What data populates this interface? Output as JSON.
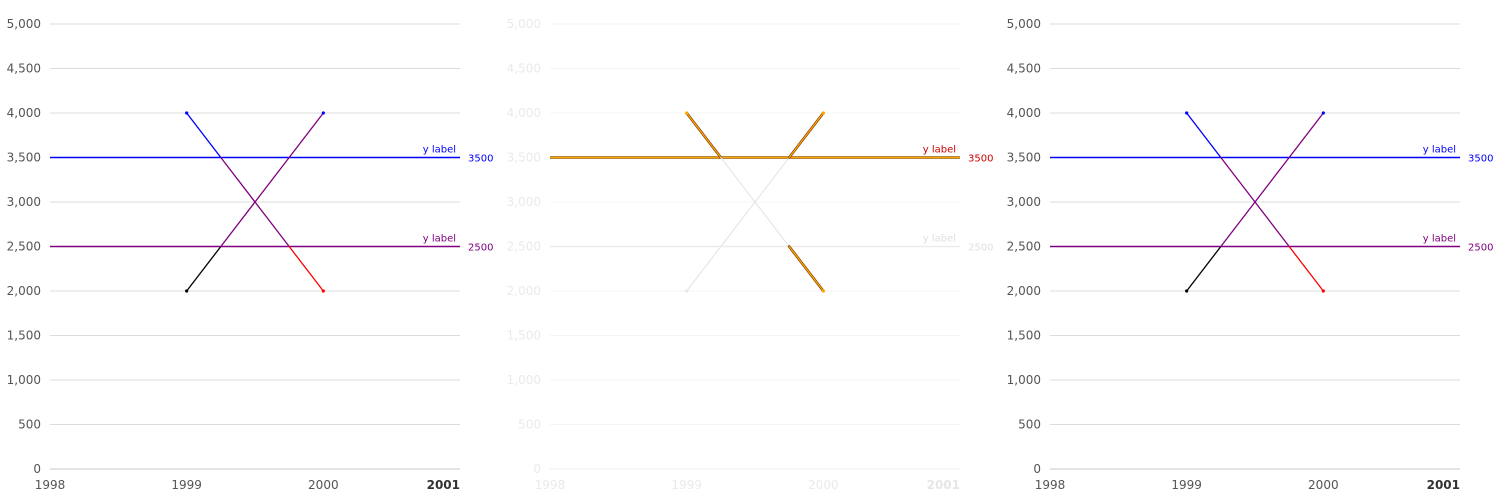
{
  "chart_data": [
    {
      "type": "line",
      "style": "normal",
      "x_ticks": [
        "1998",
        "1999",
        "2000",
        "2001"
      ],
      "y_ticks": [
        "0",
        "500",
        "1,000",
        "1,500",
        "2,000",
        "2,500",
        "3,000",
        "3,500",
        "4,000",
        "4,500",
        "5,000"
      ],
      "xlim": [
        1998,
        2001
      ],
      "ylim": [
        0,
        5000
      ],
      "series": [
        {
          "x": [
            1999,
            2000
          ],
          "y": [
            4000,
            2000
          ],
          "color": "#0000ff",
          "threshold_color": "#ff0000"
        },
        {
          "x": [
            1999,
            2000
          ],
          "y": [
            2000,
            4000
          ],
          "color": "#000000",
          "threshold_color": "#800080"
        }
      ],
      "reference_lines": [
        {
          "y": 3500,
          "label": "y label",
          "value_label": "3500",
          "color": "#0000ff"
        },
        {
          "y": 2500,
          "label": "y label",
          "value_label": "2500",
          "color": "#800080"
        }
      ]
    },
    {
      "type": "line",
      "style": "faded-highlight",
      "highlight_color": "#ffa500",
      "highlight_text_color": "#cc0000",
      "x_ticks": [
        "1998",
        "1999",
        "2000",
        "2001"
      ],
      "y_ticks": [
        "0",
        "500",
        "1,000",
        "1,500",
        "2,000",
        "2,500",
        "3,000",
        "3,500",
        "4,000",
        "4,500",
        "5,000"
      ],
      "xlim": [
        1998,
        2001
      ],
      "ylim": [
        0,
        5000
      ],
      "series": [
        {
          "x": [
            1999,
            2000
          ],
          "y": [
            4000,
            2000
          ],
          "color": "#0000ff",
          "threshold_color": "#ff0000"
        },
        {
          "x": [
            1999,
            2000
          ],
          "y": [
            2000,
            4000
          ],
          "color": "#000000",
          "threshold_color": "#800080"
        }
      ],
      "reference_lines": [
        {
          "y": 3500,
          "label": "y label",
          "value_label": "3500",
          "color": "#0000ff"
        },
        {
          "y": 2500,
          "label": "y label",
          "value_label": "2500",
          "color": "#800080"
        }
      ]
    },
    {
      "type": "line",
      "style": "normal",
      "x_ticks": [
        "1998",
        "1999",
        "2000",
        "2001"
      ],
      "y_ticks": [
        "0",
        "500",
        "1,000",
        "1,500",
        "2,000",
        "2,500",
        "3,000",
        "3,500",
        "4,000",
        "4,500",
        "5,000"
      ],
      "xlim": [
        1998,
        2001
      ],
      "ylim": [
        0,
        5000
      ],
      "series": [
        {
          "x": [
            1999,
            2000
          ],
          "y": [
            4000,
            2000
          ],
          "color": "#0000ff",
          "threshold_color": "#ff0000"
        },
        {
          "x": [
            1999,
            2000
          ],
          "y": [
            2000,
            4000
          ],
          "color": "#000000",
          "threshold_color": "#800080"
        }
      ],
      "reference_lines": [
        {
          "y": 3500,
          "label": "y label",
          "value_label": "3500",
          "color": "#0000ff"
        },
        {
          "y": 2500,
          "label": "y label",
          "value_label": "2500",
          "color": "#800080"
        }
      ]
    }
  ]
}
